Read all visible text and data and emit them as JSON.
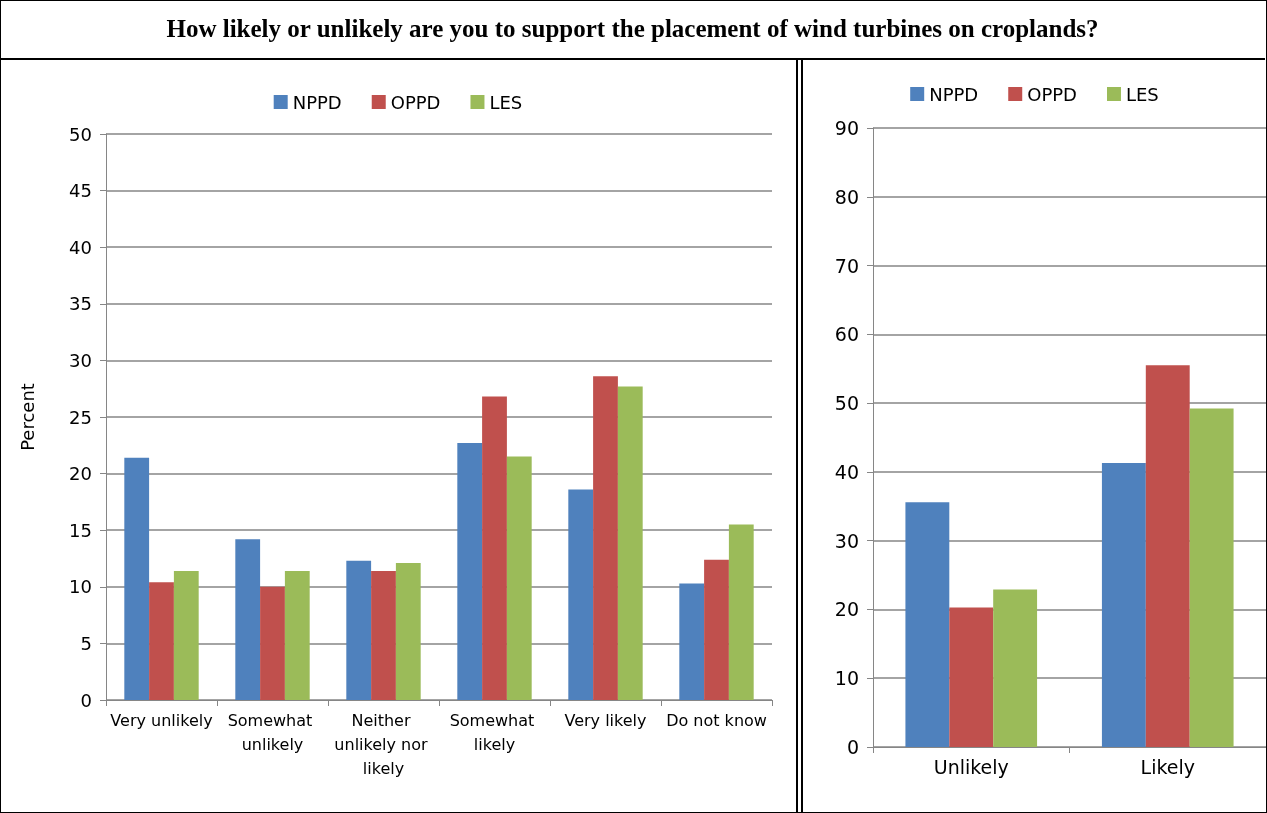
{
  "chart_data": [
    {
      "type": "bar",
      "title": "How likely or unlikely are you to support the placement of wind turbines on croplands?",
      "ylabel": "Percent",
      "categories": [
        "Very unlikely",
        "Somewhat unlikely",
        "Neither unlikely nor likely",
        "Somewhat likely",
        "Very likely",
        "Do not know"
      ],
      "series": [
        {
          "name": "NPPD",
          "color": "#4f81bd",
          "values": [
            21.4,
            14.2,
            12.3,
            22.7,
            18.6,
            10.3
          ]
        },
        {
          "name": "OPPD",
          "color": "#c0504d",
          "values": [
            10.4,
            10.0,
            11.4,
            26.8,
            28.6,
            12.4
          ]
        },
        {
          "name": "LES",
          "color": "#9bbb59",
          "values": [
            11.4,
            11.4,
            12.1,
            21.5,
            27.7,
            15.5
          ]
        }
      ],
      "ylim": [
        0,
        50
      ],
      "yticks": [
        0,
        5,
        10,
        15,
        20,
        25,
        30,
        35,
        40,
        45,
        50
      ],
      "grid": "y",
      "legend": "top"
    },
    {
      "type": "bar",
      "categories": [
        "Unlikely",
        "Likely"
      ],
      "series": [
        {
          "name": "NPPD",
          "color": "#4f81bd",
          "values": [
            35.6,
            41.3
          ]
        },
        {
          "name": "OPPD",
          "color": "#c0504d",
          "values": [
            20.3,
            55.5
          ]
        },
        {
          "name": "LES",
          "color": "#9bbb59",
          "values": [
            22.9,
            49.2
          ]
        }
      ],
      "ylim": [
        0,
        90
      ],
      "yticks": [
        0,
        10,
        20,
        30,
        40,
        50,
        60,
        70,
        80,
        90
      ],
      "grid": "y",
      "legend": "top"
    }
  ]
}
